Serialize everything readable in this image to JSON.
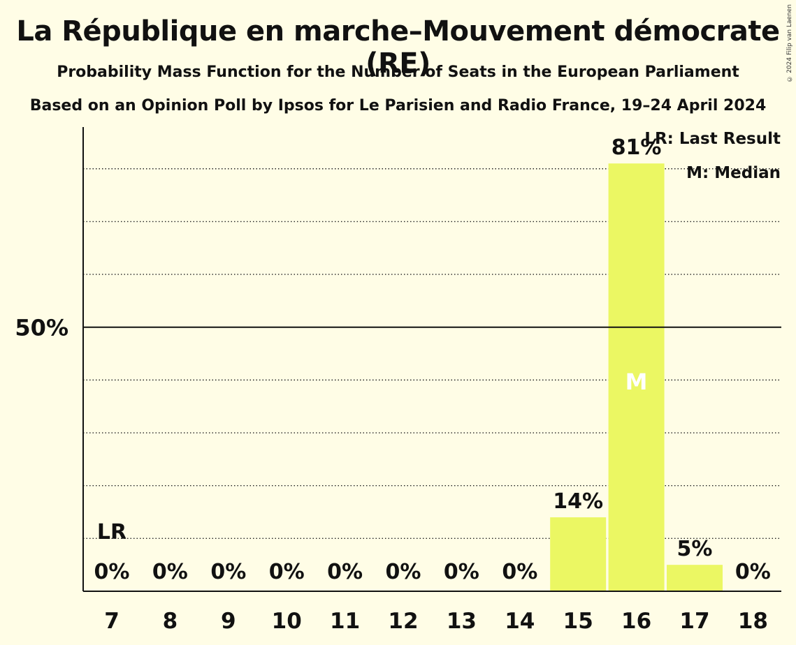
{
  "title": "La République en marche–Mouvement démocrate (RE)",
  "subtitle": "Probability Mass Function for the Number of Seats in the European Parliament",
  "subtitle2": "Based on an Opinion Poll by Ipsos for Le Parisien and Radio France, 19–24 April 2024",
  "copyright": "© 2024 Filip van Laenen",
  "legend": {
    "last_result": "LR: Last Result",
    "median": "M: Median"
  },
  "colors": {
    "background": "#FFFDE6",
    "bar": "#EBF763",
    "text": "#111111"
  },
  "chart_data": {
    "type": "bar",
    "categories": [
      "7",
      "8",
      "9",
      "10",
      "11",
      "12",
      "13",
      "14",
      "15",
      "16",
      "17",
      "18"
    ],
    "values": [
      0,
      0,
      0,
      0,
      0,
      0,
      0,
      0,
      14,
      81,
      5,
      0
    ],
    "value_labels": [
      "0%",
      "0%",
      "0%",
      "0%",
      "0%",
      "0%",
      "0%",
      "0%",
      "14%",
      "81%",
      "5%",
      "0%"
    ],
    "ylim": [
      0,
      87.5
    ],
    "ytick_label": "50%",
    "ytick_value": 50,
    "gridlines": [
      10,
      20,
      30,
      40,
      60,
      70,
      80
    ],
    "last_result": {
      "category": "7",
      "label": "LR"
    },
    "median": {
      "category": "16",
      "label": "M"
    }
  }
}
